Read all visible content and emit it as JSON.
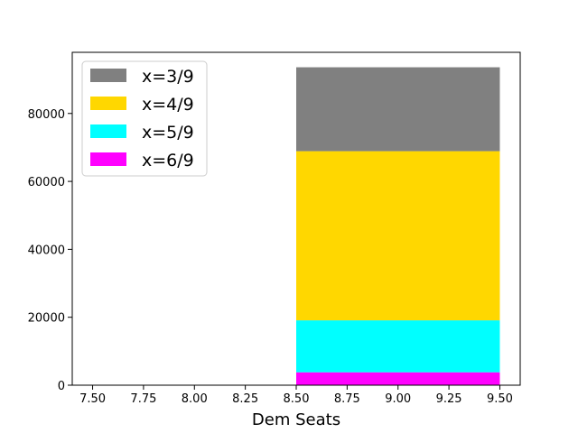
{
  "chart_data": {
    "type": "bar",
    "stacked": true,
    "title": "",
    "xlabel": "Dem Seats",
    "ylabel": "",
    "xlim": [
      7.4,
      9.6
    ],
    "ylim": [
      0,
      98000
    ],
    "x_ticks": [
      "7.50",
      "7.75",
      "8.00",
      "8.25",
      "8.50",
      "8.75",
      "9.00",
      "9.25",
      "9.50"
    ],
    "y_ticks": [
      "0",
      "20000",
      "40000",
      "60000",
      "80000"
    ],
    "grid": false,
    "legend_position": "top-left",
    "bar": {
      "x_start": 8.5,
      "x_end": 9.5
    },
    "series": [
      {
        "name": "x=6/9",
        "value": 3800,
        "color": "#ff00ff"
      },
      {
        "name": "x=5/9",
        "value": 15300,
        "color": "#00ffff"
      },
      {
        "name": "x=4/9",
        "value": 49800,
        "color": "#ffd700"
      },
      {
        "name": "x=3/9",
        "value": 24700,
        "color": "#808080"
      }
    ],
    "legend_order": [
      "x=3/9",
      "x=4/9",
      "x=5/9",
      "x=6/9"
    ]
  }
}
